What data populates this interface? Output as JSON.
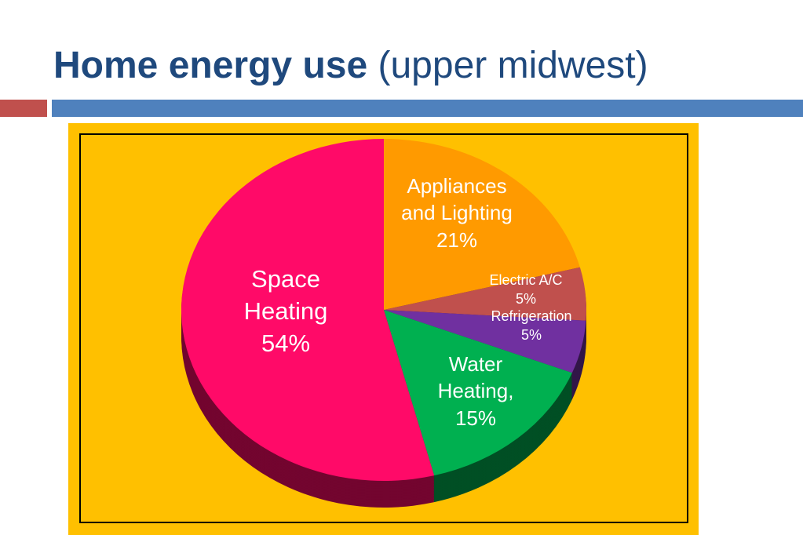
{
  "chart_data": {
    "type": "pie",
    "title": "Home energy use",
    "subtitle": "(upper midwest)",
    "categories": [
      "Appliances and Lighting",
      "Electric A/C",
      "Refrigeration",
      "Water Heating,",
      "Space Heating"
    ],
    "values": [
      21,
      5,
      5,
      15,
      54
    ],
    "value_labels": [
      "21%",
      "5%",
      "5%",
      "15%",
      "54%"
    ],
    "colors": [
      "#ff9a00",
      "#c0504d",
      "#7030a0",
      "#00b050",
      "#ff0a68"
    ]
  }
}
